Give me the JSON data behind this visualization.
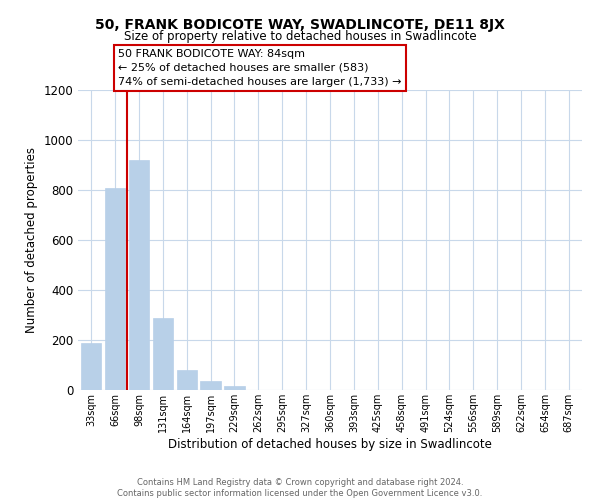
{
  "title": "50, FRANK BODICOTE WAY, SWADLINCOTE, DE11 8JX",
  "subtitle": "Size of property relative to detached houses in Swadlincote",
  "xlabel": "Distribution of detached houses by size in Swadlincote",
  "ylabel": "Number of detached properties",
  "bar_labels": [
    "33sqm",
    "66sqm",
    "98sqm",
    "131sqm",
    "164sqm",
    "197sqm",
    "229sqm",
    "262sqm",
    "295sqm",
    "327sqm",
    "360sqm",
    "393sqm",
    "425sqm",
    "458sqm",
    "491sqm",
    "524sqm",
    "556sqm",
    "589sqm",
    "622sqm",
    "654sqm",
    "687sqm"
  ],
  "bar_values": [
    190,
    810,
    920,
    290,
    80,
    37,
    15,
    0,
    0,
    0,
    0,
    0,
    0,
    0,
    0,
    0,
    0,
    0,
    0,
    0,
    0
  ],
  "bar_color": "#b8d0e8",
  "bar_edge_color": "#b8d0e8",
  "vline_x_index": 1.5,
  "vline_color": "#cc0000",
  "ylim": [
    0,
    1200
  ],
  "yticks": [
    0,
    200,
    400,
    600,
    800,
    1000,
    1200
  ],
  "annotation_title": "50 FRANK BODICOTE WAY: 84sqm",
  "annotation_line1": "← 25% of detached houses are smaller (583)",
  "annotation_line2": "74% of semi-detached houses are larger (1,733) →",
  "annotation_box_color": "#ffffff",
  "annotation_box_edge": "#cc0000",
  "footer_line1": "Contains HM Land Registry data © Crown copyright and database right 2024.",
  "footer_line2": "Contains public sector information licensed under the Open Government Licence v3.0.",
  "background_color": "#ffffff",
  "grid_color": "#c8d8ea"
}
